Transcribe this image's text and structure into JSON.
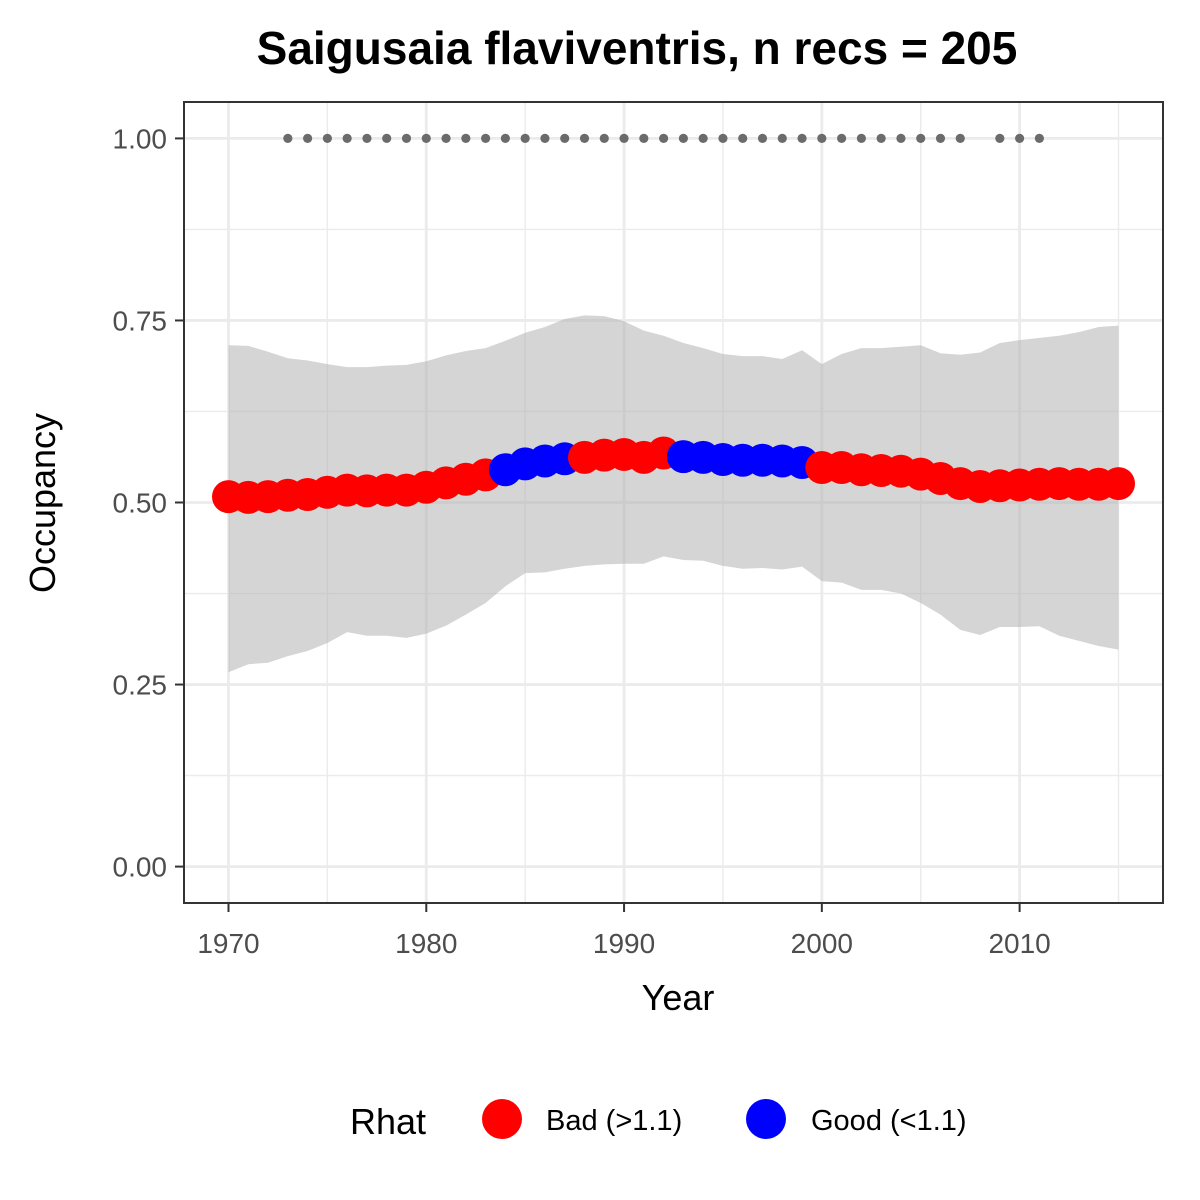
{
  "chart_data": {
    "type": "line",
    "title": "Saigusaia flaviventris, n recs = 205",
    "xlabel": "Year",
    "ylabel": "Occupancy",
    "xlim": [
      1967.75,
      2017.25
    ],
    "ylim": [
      -0.05,
      1.05
    ],
    "x_ticks": [
      1970,
      1980,
      1990,
      2000,
      2010
    ],
    "y_ticks": [
      0.0,
      0.25,
      0.5,
      0.75,
      1.0
    ],
    "y_tick_labels": [
      "0.00",
      "0.25",
      "0.50",
      "0.75",
      "1.00"
    ],
    "grid": true,
    "legend": {
      "title": "Rhat",
      "position": "bottom",
      "entries": [
        {
          "key": "bad",
          "label": "Bad (>1.1)",
          "color": "#ff0000"
        },
        {
          "key": "good",
          "label": "Good (<1.1)",
          "color": "#0000ff"
        }
      ]
    },
    "x": [
      1970,
      1971,
      1972,
      1973,
      1974,
      1975,
      1976,
      1977,
      1978,
      1979,
      1980,
      1981,
      1982,
      1983,
      1984,
      1985,
      1986,
      1987,
      1988,
      1989,
      1990,
      1991,
      1992,
      1993,
      1994,
      1995,
      1996,
      1997,
      1998,
      1999,
      2000,
      2001,
      2002,
      2003,
      2004,
      2005,
      2006,
      2007,
      2008,
      2009,
      2010,
      2011,
      2012,
      2013,
      2014,
      2015
    ],
    "occupancy": [
      0.508,
      0.507,
      0.508,
      0.51,
      0.511,
      0.514,
      0.517,
      0.516,
      0.517,
      0.517,
      0.521,
      0.527,
      0.532,
      0.538,
      0.545,
      0.553,
      0.557,
      0.56,
      0.562,
      0.565,
      0.566,
      0.562,
      0.568,
      0.563,
      0.562,
      0.559,
      0.558,
      0.558,
      0.557,
      0.555,
      0.548,
      0.548,
      0.545,
      0.544,
      0.543,
      0.539,
      0.533,
      0.526,
      0.522,
      0.523,
      0.524,
      0.525,
      0.526,
      0.525,
      0.525,
      0.526
    ],
    "rhat": [
      "bad",
      "bad",
      "bad",
      "bad",
      "bad",
      "bad",
      "bad",
      "bad",
      "bad",
      "bad",
      "bad",
      "bad",
      "bad",
      "bad",
      "good",
      "good",
      "good",
      "good",
      "bad",
      "bad",
      "bad",
      "bad",
      "bad",
      "good",
      "good",
      "good",
      "good",
      "good",
      "good",
      "good",
      "bad",
      "bad",
      "bad",
      "bad",
      "bad",
      "bad",
      "bad",
      "bad",
      "bad",
      "bad",
      "bad",
      "bad",
      "bad",
      "bad",
      "bad",
      "bad"
    ],
    "lower": [
      0.267,
      0.278,
      0.28,
      0.289,
      0.296,
      0.307,
      0.322,
      0.317,
      0.317,
      0.314,
      0.32,
      0.331,
      0.346,
      0.362,
      0.385,
      0.403,
      0.404,
      0.409,
      0.413,
      0.415,
      0.416,
      0.416,
      0.426,
      0.421,
      0.42,
      0.413,
      0.409,
      0.41,
      0.408,
      0.412,
      0.392,
      0.39,
      0.38,
      0.38,
      0.375,
      0.362,
      0.346,
      0.325,
      0.318,
      0.329,
      0.329,
      0.33,
      0.317,
      0.31,
      0.303,
      0.298
    ],
    "upper": [
      0.716,
      0.715,
      0.707,
      0.698,
      0.695,
      0.69,
      0.686,
      0.686,
      0.688,
      0.689,
      0.694,
      0.702,
      0.708,
      0.712,
      0.722,
      0.733,
      0.741,
      0.752,
      0.757,
      0.756,
      0.749,
      0.736,
      0.729,
      0.719,
      0.712,
      0.704,
      0.701,
      0.701,
      0.697,
      0.709,
      0.69,
      0.704,
      0.712,
      0.712,
      0.714,
      0.716,
      0.705,
      0.703,
      0.706,
      0.719,
      0.723,
      0.726,
      0.729,
      0.734,
      0.741,
      0.743
    ],
    "record_years": [
      1973,
      1974,
      1975,
      1976,
      1977,
      1978,
      1979,
      1980,
      1981,
      1982,
      1983,
      1984,
      1985,
      1986,
      1987,
      1988,
      1989,
      1990,
      1991,
      1992,
      1993,
      1994,
      1995,
      1996,
      1997,
      1998,
      1999,
      2000,
      2001,
      2002,
      2003,
      2004,
      2005,
      2006,
      2007,
      2009,
      2010,
      2011
    ],
    "record_marker_y": 1.0
  }
}
